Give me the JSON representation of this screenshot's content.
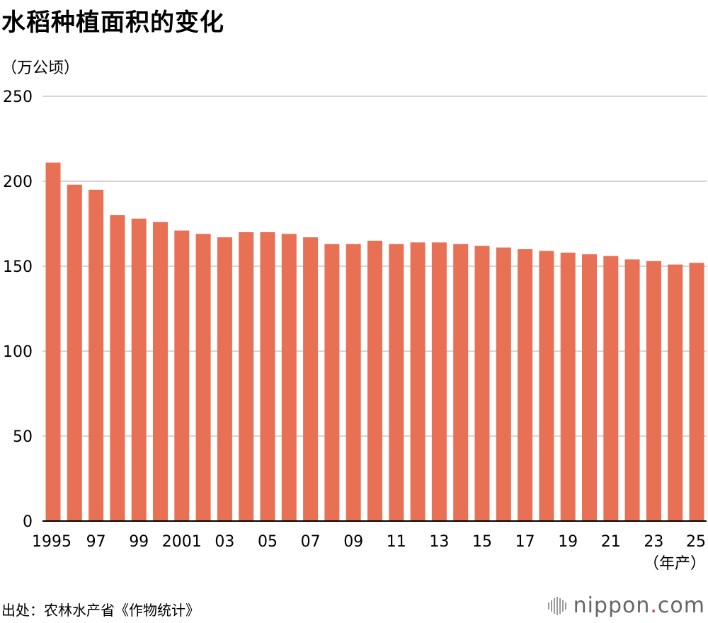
{
  "chart_data": {
    "type": "bar",
    "title": "水稻种植面积的变化",
    "ylabel": "（万公顷）",
    "xlabel_suffix": "（年产）",
    "ylim": [
      0,
      250
    ],
    "yticks": [
      0,
      50,
      100,
      150,
      200,
      250
    ],
    "categories": [
      "1995",
      "1996",
      "1997",
      "1998",
      "1999",
      "2000",
      "2001",
      "2002",
      "2003",
      "2004",
      "2005",
      "2006",
      "2007",
      "2008",
      "2009",
      "2010",
      "2011",
      "2012",
      "2013",
      "2014",
      "2015",
      "2016",
      "2017",
      "2018",
      "2019",
      "2020",
      "2021",
      "2022",
      "2023",
      "2024",
      "2025"
    ],
    "xtick_labels": [
      "1995",
      "",
      "97",
      "",
      "99",
      "",
      "2001",
      "",
      "03",
      "",
      "05",
      "",
      "07",
      "",
      "09",
      "",
      "11",
      "",
      "13",
      "",
      "15",
      "",
      "17",
      "",
      "19",
      "",
      "21",
      "",
      "23",
      "",
      "25"
    ],
    "values": [
      211,
      198,
      195,
      180,
      178,
      176,
      171,
      169,
      167,
      170,
      170,
      169,
      167,
      163,
      163,
      165,
      163,
      164,
      164,
      163,
      162,
      161,
      160,
      159,
      158,
      157,
      156,
      154,
      153,
      151,
      152
    ],
    "bar_color": "#e87155",
    "grid": true,
    "gridline_color": "#c8c8c8"
  },
  "source": "出处：农林水产省《作物统计》",
  "logo": {
    "prefix": "nippon",
    "dot": ".",
    "suffix": "com"
  }
}
